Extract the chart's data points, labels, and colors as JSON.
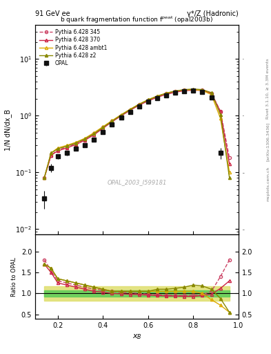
{
  "title_left": "91 GeV ee",
  "title_right": "γ*/Z (Hadronic)",
  "plot_title": "b quark fragmentation function f$^{peak}$ (opal2003b)",
  "xlabel": "x_B",
  "ylabel_main": "1/N dN/dx_B",
  "ylabel_ratio": "Ratio to OPAL",
  "watermark": "OPAL_2003_I599181",
  "right_label": "Rivet 3.1.10, ≥ 3.3M events",
  "right_label2": "[arXiv:1306.3436]",
  "right_label3": "mcplots.cern.ch",
  "xB": [
    0.14,
    0.17,
    0.2,
    0.24,
    0.28,
    0.32,
    0.36,
    0.4,
    0.44,
    0.48,
    0.52,
    0.56,
    0.6,
    0.64,
    0.68,
    0.72,
    0.76,
    0.8,
    0.84,
    0.88,
    0.92,
    0.96
  ],
  "opal_y": [
    0.035,
    0.12,
    0.19,
    0.22,
    0.26,
    0.3,
    0.38,
    0.52,
    0.7,
    0.92,
    1.15,
    1.45,
    1.75,
    2.05,
    2.3,
    2.55,
    2.7,
    2.75,
    2.65,
    2.1,
    0.22,
    null
  ],
  "opal_yerr": [
    0.012,
    0.02,
    0.02,
    0.02,
    0.02,
    0.02,
    0.03,
    0.04,
    0.05,
    0.06,
    0.07,
    0.08,
    0.09,
    0.1,
    0.1,
    0.1,
    0.1,
    0.1,
    0.1,
    0.15,
    0.05,
    null
  ],
  "p345_y": [
    0.08,
    0.2,
    0.25,
    0.28,
    0.32,
    0.38,
    0.48,
    0.62,
    0.8,
    1.02,
    1.28,
    1.58,
    1.88,
    2.18,
    2.45,
    2.68,
    2.82,
    2.88,
    2.82,
    2.5,
    1.2,
    0.18
  ],
  "p370_y": [
    0.08,
    0.2,
    0.24,
    0.27,
    0.31,
    0.37,
    0.46,
    0.6,
    0.78,
    0.99,
    1.24,
    1.53,
    1.82,
    2.11,
    2.37,
    2.6,
    2.75,
    2.82,
    2.78,
    2.48,
    1.18,
    0.14
  ],
  "pambt1_y": [
    0.08,
    0.22,
    0.27,
    0.3,
    0.34,
    0.4,
    0.5,
    0.64,
    0.82,
    1.04,
    1.3,
    1.6,
    1.92,
    2.22,
    2.5,
    2.72,
    2.85,
    2.88,
    2.78,
    2.35,
    0.9,
    0.1
  ],
  "pz2_y": [
    0.08,
    0.22,
    0.26,
    0.29,
    0.33,
    0.39,
    0.48,
    0.62,
    0.8,
    1.02,
    1.28,
    1.58,
    1.9,
    2.2,
    2.48,
    2.72,
    2.88,
    2.95,
    2.88,
    2.55,
    1.05,
    0.08
  ],
  "ratio_345": [
    1.8,
    1.55,
    1.3,
    1.25,
    1.2,
    1.15,
    1.1,
    1.08,
    1.05,
    1.03,
    1.02,
    1.0,
    0.98,
    0.97,
    0.96,
    0.95,
    0.95,
    0.96,
    0.97,
    1.05,
    1.4,
    1.8
  ],
  "ratio_370": [
    1.7,
    1.5,
    1.25,
    1.2,
    1.15,
    1.1,
    1.05,
    1.03,
    1.0,
    0.99,
    0.98,
    0.97,
    0.96,
    0.95,
    0.94,
    0.94,
    0.93,
    0.93,
    0.95,
    0.98,
    1.12,
    1.3
  ],
  "ratio_ambt1": [
    1.7,
    1.6,
    1.35,
    1.3,
    1.25,
    1.2,
    1.15,
    1.1,
    1.05,
    1.05,
    1.05,
    1.05,
    1.05,
    1.05,
    1.05,
    1.05,
    1.05,
    1.05,
    1.0,
    0.85,
    0.72,
    0.55
  ],
  "ratio_z2": [
    1.7,
    1.6,
    1.35,
    1.3,
    1.25,
    1.2,
    1.15,
    1.1,
    1.05,
    1.05,
    1.05,
    1.05,
    1.05,
    1.1,
    1.1,
    1.12,
    1.15,
    1.2,
    1.18,
    1.1,
    0.88,
    0.55
  ],
  "band_green_low": [
    0.93,
    0.93,
    0.93,
    0.93,
    0.93,
    0.93,
    0.93,
    0.93,
    0.93,
    0.93,
    0.93,
    0.93,
    0.93,
    0.93,
    0.93,
    0.93,
    0.93,
    0.93,
    0.93,
    0.93,
    0.93,
    0.93
  ],
  "band_green_high": [
    1.07,
    1.07,
    1.07,
    1.07,
    1.07,
    1.07,
    1.07,
    1.07,
    1.07,
    1.07,
    1.07,
    1.07,
    1.07,
    1.07,
    1.07,
    1.07,
    1.07,
    1.07,
    1.07,
    1.07,
    1.07,
    1.07
  ],
  "band_yellow_low": [
    0.83,
    0.83,
    0.83,
    0.83,
    0.83,
    0.83,
    0.83,
    0.83,
    0.83,
    0.83,
    0.83,
    0.83,
    0.83,
    0.83,
    0.83,
    0.83,
    0.83,
    0.83,
    0.83,
    0.83,
    0.83,
    0.83
  ],
  "band_yellow_high": [
    1.17,
    1.17,
    1.17,
    1.17,
    1.17,
    1.17,
    1.17,
    1.17,
    1.17,
    1.17,
    1.17,
    1.17,
    1.17,
    1.17,
    1.17,
    1.17,
    1.17,
    1.17,
    1.17,
    1.17,
    1.17,
    1.17
  ],
  "color_345": "#cc4466",
  "color_370": "#cc2244",
  "color_ambt1": "#ddaa00",
  "color_z2": "#888800",
  "color_opal": "#111111",
  "color_green": "#55cc55",
  "color_yellow": "#dddd66",
  "xlim": [
    0.1,
    1.0
  ],
  "ylim_main": [
    0.008,
    40
  ],
  "ylim_ratio": [
    0.4,
    2.4
  ],
  "yticks_ratio": [
    0.5,
    1.0,
    1.5,
    2.0
  ],
  "xticks": [
    0.2,
    0.4,
    0.6,
    0.8,
    1.0
  ]
}
